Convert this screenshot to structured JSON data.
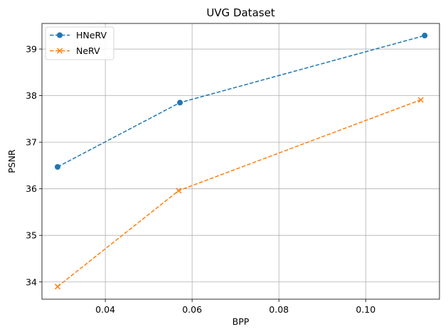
{
  "chart_data": {
    "type": "line",
    "title": "UVG Dataset",
    "xlabel": "BPP",
    "ylabel": "PSNR",
    "xlim": [
      0.0254,
      0.117
    ],
    "ylim": [
      33.63,
      39.55
    ],
    "xticks": [
      0.04,
      0.06,
      0.08,
      0.1
    ],
    "xtick_labels": [
      "0.04",
      "0.06",
      "0.08",
      "0.10"
    ],
    "yticks": [
      34,
      35,
      36,
      37,
      38,
      39
    ],
    "ytick_labels": [
      "34",
      "35",
      "36",
      "37",
      "38",
      "39"
    ],
    "grid": true,
    "legend_position": "upper-left",
    "series": [
      {
        "name": "HNeRV",
        "color": "#1f77b4",
        "linestyle": "dashed",
        "marker": "circle",
        "x": [
          0.029,
          0.0572,
          0.1136
        ],
        "y": [
          36.47,
          37.85,
          39.29
        ]
      },
      {
        "name": "NeRV",
        "color": "#ff7f0e",
        "linestyle": "dashed",
        "marker": "x",
        "x": [
          0.029,
          0.0569,
          0.1127
        ],
        "y": [
          33.9,
          35.96,
          37.91
        ]
      }
    ]
  }
}
